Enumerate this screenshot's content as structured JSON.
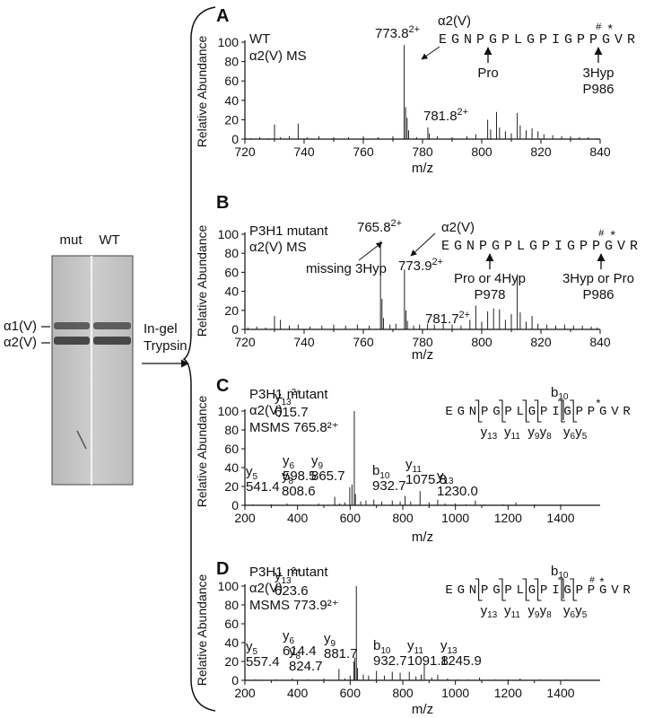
{
  "gel": {
    "lane_labels": [
      "mut",
      "WT"
    ],
    "band_labels": [
      "α1(V)",
      "α2(V)"
    ],
    "arrow_label_lines": [
      "In-gel",
      "Trypsin"
    ]
  },
  "chart_data": [
    {
      "id": "A",
      "type": "bar",
      "panel_label": "A",
      "xlabel": "m/z",
      "ylabel": "Relative Abundance",
      "xlim": [
        720,
        840
      ],
      "ylim": [
        0,
        100
      ],
      "xticks": [
        720,
        740,
        760,
        780,
        800,
        820,
        840
      ],
      "yticks": [
        0,
        20,
        40,
        60,
        80,
        100
      ],
      "info_lines": [
        "WT",
        "α2(V) MS"
      ],
      "peaks": [
        {
          "x": 722,
          "y": 1
        },
        {
          "x": 725,
          "y": 2
        },
        {
          "x": 728,
          "y": 1
        },
        {
          "x": 730,
          "y": 15
        },
        {
          "x": 732,
          "y": 2
        },
        {
          "x": 735,
          "y": 3
        },
        {
          "x": 738,
          "y": 16
        },
        {
          "x": 741,
          "y": 2
        },
        {
          "x": 745,
          "y": 3
        },
        {
          "x": 750,
          "y": 2
        },
        {
          "x": 755,
          "y": 2
        },
        {
          "x": 760,
          "y": 3
        },
        {
          "x": 765,
          "y": 2
        },
        {
          "x": 770,
          "y": 3
        },
        {
          "x": 773.8,
          "y": 97
        },
        {
          "x": 774.3,
          "y": 33
        },
        {
          "x": 774.8,
          "y": 22
        },
        {
          "x": 775.3,
          "y": 9
        },
        {
          "x": 778,
          "y": 2
        },
        {
          "x": 781.8,
          "y": 12
        },
        {
          "x": 782.3,
          "y": 6
        },
        {
          "x": 785,
          "y": 3
        },
        {
          "x": 790,
          "y": 2
        },
        {
          "x": 795,
          "y": 3
        },
        {
          "x": 798,
          "y": 5
        },
        {
          "x": 802,
          "y": 20
        },
        {
          "x": 803,
          "y": 10
        },
        {
          "x": 805,
          "y": 28
        },
        {
          "x": 806,
          "y": 12
        },
        {
          "x": 808,
          "y": 8
        },
        {
          "x": 810,
          "y": 6
        },
        {
          "x": 812,
          "y": 27
        },
        {
          "x": 813,
          "y": 14
        },
        {
          "x": 815,
          "y": 9
        },
        {
          "x": 817,
          "y": 11
        },
        {
          "x": 819,
          "y": 8
        },
        {
          "x": 821,
          "y": 5
        },
        {
          "x": 824,
          "y": 4
        },
        {
          "x": 827,
          "y": 3
        },
        {
          "x": 830,
          "y": 3
        },
        {
          "x": 833,
          "y": 2
        },
        {
          "x": 836,
          "y": 2
        },
        {
          "x": 839,
          "y": 1
        }
      ],
      "peak_labels": [
        {
          "main": "773.8",
          "sup": "2+",
          "x": 773.8
        },
        {
          "main": "781.8",
          "sup": "2+",
          "x": 781.8
        }
      ],
      "seq_title": "α2(V)",
      "sequence": "EGNPGPLGPIGPPGVR",
      "seq_marks": [
        "#",
        "*"
      ],
      "seq_annotations": [
        {
          "lines": [
            "Pro"
          ]
        },
        {
          "lines": [
            "3Hyp",
            "P986"
          ]
        }
      ]
    },
    {
      "id": "B",
      "type": "bar",
      "panel_label": "B",
      "xlabel": "m/z",
      "ylabel": "Relative Abundance",
      "xlim": [
        720,
        840
      ],
      "ylim": [
        0,
        100
      ],
      "xticks": [
        720,
        740,
        760,
        780,
        800,
        820,
        840
      ],
      "yticks": [
        0,
        20,
        40,
        60,
        80,
        100
      ],
      "info_lines": [
        "P3H1 mutant",
        "α2(V) MS"
      ],
      "peaks": [
        {
          "x": 721,
          "y": 2
        },
        {
          "x": 724,
          "y": 3
        },
        {
          "x": 727,
          "y": 2
        },
        {
          "x": 730,
          "y": 14
        },
        {
          "x": 732,
          "y": 10
        },
        {
          "x": 735,
          "y": 4
        },
        {
          "x": 738,
          "y": 5
        },
        {
          "x": 742,
          "y": 3
        },
        {
          "x": 746,
          "y": 4
        },
        {
          "x": 750,
          "y": 5
        },
        {
          "x": 754,
          "y": 4
        },
        {
          "x": 758,
          "y": 5
        },
        {
          "x": 762,
          "y": 4
        },
        {
          "x": 765.8,
          "y": 93
        },
        {
          "x": 766.3,
          "y": 32
        },
        {
          "x": 766.8,
          "y": 12
        },
        {
          "x": 769,
          "y": 5
        },
        {
          "x": 771,
          "y": 6
        },
        {
          "x": 773.9,
          "y": 63
        },
        {
          "x": 774.4,
          "y": 20
        },
        {
          "x": 774.9,
          "y": 9
        },
        {
          "x": 777,
          "y": 4
        },
        {
          "x": 779,
          "y": 5
        },
        {
          "x": 781.7,
          "y": 6
        },
        {
          "x": 784,
          "y": 5
        },
        {
          "x": 787,
          "y": 6
        },
        {
          "x": 790,
          "y": 5
        },
        {
          "x": 793,
          "y": 4
        },
        {
          "x": 796,
          "y": 10
        },
        {
          "x": 798,
          "y": 25
        },
        {
          "x": 800,
          "y": 8
        },
        {
          "x": 802,
          "y": 19
        },
        {
          "x": 804,
          "y": 22
        },
        {
          "x": 806,
          "y": 21
        },
        {
          "x": 808,
          "y": 10
        },
        {
          "x": 810,
          "y": 16
        },
        {
          "x": 812,
          "y": 58
        },
        {
          "x": 813,
          "y": 18
        },
        {
          "x": 815,
          "y": 8
        },
        {
          "x": 817,
          "y": 14
        },
        {
          "x": 819,
          "y": 6
        },
        {
          "x": 822,
          "y": 5
        },
        {
          "x": 825,
          "y": 4
        },
        {
          "x": 828,
          "y": 5
        },
        {
          "x": 831,
          "y": 4
        },
        {
          "x": 834,
          "y": 4
        },
        {
          "x": 837,
          "y": 3
        },
        {
          "x": 839,
          "y": 2
        }
      ],
      "peak_labels": [
        {
          "main": "765.8",
          "sup": "2+",
          "x": 765.8
        },
        {
          "main": "773.9",
          "sup": "2+",
          "x": 773.9
        },
        {
          "main": "781.7",
          "sup": "2+",
          "x": 781.7
        }
      ],
      "extra_annotation": "missing 3Hyp",
      "seq_title": "α2(V)",
      "sequence": "EGNPGPLGPIGPPGVR",
      "seq_marks": [
        "#",
        "*"
      ],
      "seq_annotations": [
        {
          "lines": [
            "Pro or 4Hyp",
            "P978"
          ]
        },
        {
          "lines": [
            "3Hyp or Pro",
            "P986"
          ]
        }
      ]
    },
    {
      "id": "C",
      "type": "bar",
      "panel_label": "C",
      "xlabel": "m/z",
      "ylabel": "Relative Abundance",
      "xlim": [
        200,
        1550
      ],
      "ylim": [
        0,
        100
      ],
      "xticks": [
        200,
        400,
        600,
        800,
        1000,
        1200,
        1400
      ],
      "yticks": [
        0,
        20,
        40,
        60,
        80,
        100
      ],
      "info_lines": [
        "P3H1 mutant",
        "α2(V)",
        "MSMS 765.8²⁺"
      ],
      "peaks": [
        {
          "x": 230,
          "y": 1
        },
        {
          "x": 300,
          "y": 1
        },
        {
          "x": 360,
          "y": 2
        },
        {
          "x": 420,
          "y": 1
        },
        {
          "x": 480,
          "y": 2
        },
        {
          "x": 541.4,
          "y": 9
        },
        {
          "x": 560,
          "y": 2
        },
        {
          "x": 580,
          "y": 3
        },
        {
          "x": 598.5,
          "y": 19
        },
        {
          "x": 607,
          "y": 22
        },
        {
          "x": 615.7,
          "y": 100
        },
        {
          "x": 620,
          "y": 12
        },
        {
          "x": 640,
          "y": 4
        },
        {
          "x": 660,
          "y": 5
        },
        {
          "x": 690,
          "y": 6
        },
        {
          "x": 720,
          "y": 4
        },
        {
          "x": 760,
          "y": 5
        },
        {
          "x": 790,
          "y": 4
        },
        {
          "x": 808.6,
          "y": 10
        },
        {
          "x": 830,
          "y": 4
        },
        {
          "x": 865.7,
          "y": 15
        },
        {
          "x": 900,
          "y": 3
        },
        {
          "x": 932.7,
          "y": 6
        },
        {
          "x": 960,
          "y": 2
        },
        {
          "x": 1000,
          "y": 2
        },
        {
          "x": 1040,
          "y": 1
        },
        {
          "x": 1075.8,
          "y": 5
        },
        {
          "x": 1110,
          "y": 1
        },
        {
          "x": 1180,
          "y": 1
        },
        {
          "x": 1230.0,
          "y": 3
        },
        {
          "x": 1300,
          "y": 1
        },
        {
          "x": 1400,
          "y": 1
        }
      ],
      "peak_labels": [
        {
          "ion": "y",
          "sub": "13",
          "sup": "2+",
          "value": "615.7",
          "x": 615.7
        },
        {
          "ion": "y",
          "sub": "6",
          "sup": "",
          "value": "598.5",
          "x": 598.5
        },
        {
          "ion": "y",
          "sub": "5",
          "sup": "",
          "value": "541.4",
          "x": 541.4
        },
        {
          "ion": "y",
          "sub": "8",
          "sup": "",
          "value": "808.6",
          "x": 808.6
        },
        {
          "ion": "y",
          "sub": "9",
          "sup": "",
          "value": "865.7",
          "x": 865.7
        },
        {
          "ion": "b",
          "sub": "10",
          "sup": "",
          "value": "932.7",
          "x": 932.7
        },
        {
          "ion": "y",
          "sub": "11",
          "sup": "",
          "value": "1075.8",
          "x": 1075.8
        },
        {
          "ion": "y",
          "sub": "13",
          "sup": "",
          "value": "1230.0",
          "x": 1230.0
        }
      ],
      "sequence": "EGNPGPLGPIGPPGVR",
      "seq_marks": [
        "*"
      ],
      "frag_top": [
        {
          "ion": "b",
          "sub": "10"
        }
      ],
      "frag_bottom": [
        {
          "ion": "y",
          "sub": "13"
        },
        {
          "ion": "y",
          "sub": "11"
        },
        {
          "ion": "y",
          "sub": "9"
        },
        {
          "ion": "y",
          "sub": "8"
        },
        {
          "ion": "y",
          "sub": "6"
        },
        {
          "ion": "y",
          "sub": "5"
        }
      ]
    },
    {
      "id": "D",
      "type": "bar",
      "panel_label": "D",
      "xlabel": "m/z",
      "ylabel": "Relative Abundance",
      "xlim": [
        200,
        1550
      ],
      "ylim": [
        0,
        100
      ],
      "xticks": [
        200,
        400,
        600,
        800,
        1000,
        1200,
        1400
      ],
      "yticks": [
        0,
        20,
        40,
        60,
        80,
        100
      ],
      "info_lines": [
        "P3H1 mutant",
        "α2(V)",
        "MSMS 773.9²⁺"
      ],
      "peaks": [
        {
          "x": 240,
          "y": 1
        },
        {
          "x": 320,
          "y": 1
        },
        {
          "x": 380,
          "y": 2
        },
        {
          "x": 440,
          "y": 1
        },
        {
          "x": 500,
          "y": 2
        },
        {
          "x": 557.4,
          "y": 12
        },
        {
          "x": 580,
          "y": 2
        },
        {
          "x": 600,
          "y": 5
        },
        {
          "x": 614.4,
          "y": 20
        },
        {
          "x": 618,
          "y": 24
        },
        {
          "x": 623.6,
          "y": 100
        },
        {
          "x": 628,
          "y": 13
        },
        {
          "x": 650,
          "y": 6
        },
        {
          "x": 670,
          "y": 5
        },
        {
          "x": 700,
          "y": 10
        },
        {
          "x": 730,
          "y": 5
        },
        {
          "x": 760,
          "y": 9
        },
        {
          "x": 790,
          "y": 8
        },
        {
          "x": 824.7,
          "y": 9
        },
        {
          "x": 850,
          "y": 4
        },
        {
          "x": 870,
          "y": 6
        },
        {
          "x": 881.7,
          "y": 17
        },
        {
          "x": 910,
          "y": 3
        },
        {
          "x": 932.7,
          "y": 6
        },
        {
          "x": 970,
          "y": 2
        },
        {
          "x": 1010,
          "y": 1
        },
        {
          "x": 1050,
          "y": 1
        },
        {
          "x": 1091.8,
          "y": 3
        },
        {
          "x": 1150,
          "y": 1
        },
        {
          "x": 1200,
          "y": 1
        },
        {
          "x": 1245.9,
          "y": 2
        },
        {
          "x": 1320,
          "y": 1
        },
        {
          "x": 1420,
          "y": 1
        }
      ],
      "peak_labels": [
        {
          "ion": "y",
          "sub": "13",
          "sup": "2+",
          "value": "623.6",
          "x": 623.6
        },
        {
          "ion": "y",
          "sub": "6",
          "sup": "",
          "value": "614.4",
          "x": 614.4
        },
        {
          "ion": "y",
          "sub": "5",
          "sup": "",
          "value": "557.4",
          "x": 557.4
        },
        {
          "ion": "y",
          "sub": "8",
          "sup": "",
          "value": "824.7",
          "x": 824.7
        },
        {
          "ion": "y",
          "sub": "9",
          "sup": "",
          "value": "881.7",
          "x": 881.7
        },
        {
          "ion": "b",
          "sub": "10",
          "sup": "",
          "value": "932.7",
          "x": 932.7
        },
        {
          "ion": "y",
          "sub": "11",
          "sup": "",
          "value": "1091.8",
          "x": 1091.8
        },
        {
          "ion": "y",
          "sub": "13",
          "sup": "",
          "value": "1245.9",
          "x": 1245.9
        }
      ],
      "sequence": "EGNPGPLGPIGPPGVR",
      "seq_marks": [
        "#",
        "*"
      ],
      "frag_top": [
        {
          "ion": "b",
          "sub": "10"
        }
      ],
      "frag_bottom": [
        {
          "ion": "y",
          "sub": "13"
        },
        {
          "ion": "y",
          "sub": "11"
        },
        {
          "ion": "y",
          "sub": "9"
        },
        {
          "ion": "y",
          "sub": "8"
        },
        {
          "ion": "y",
          "sub": "6"
        },
        {
          "ion": "y",
          "sub": "5"
        }
      ]
    }
  ]
}
